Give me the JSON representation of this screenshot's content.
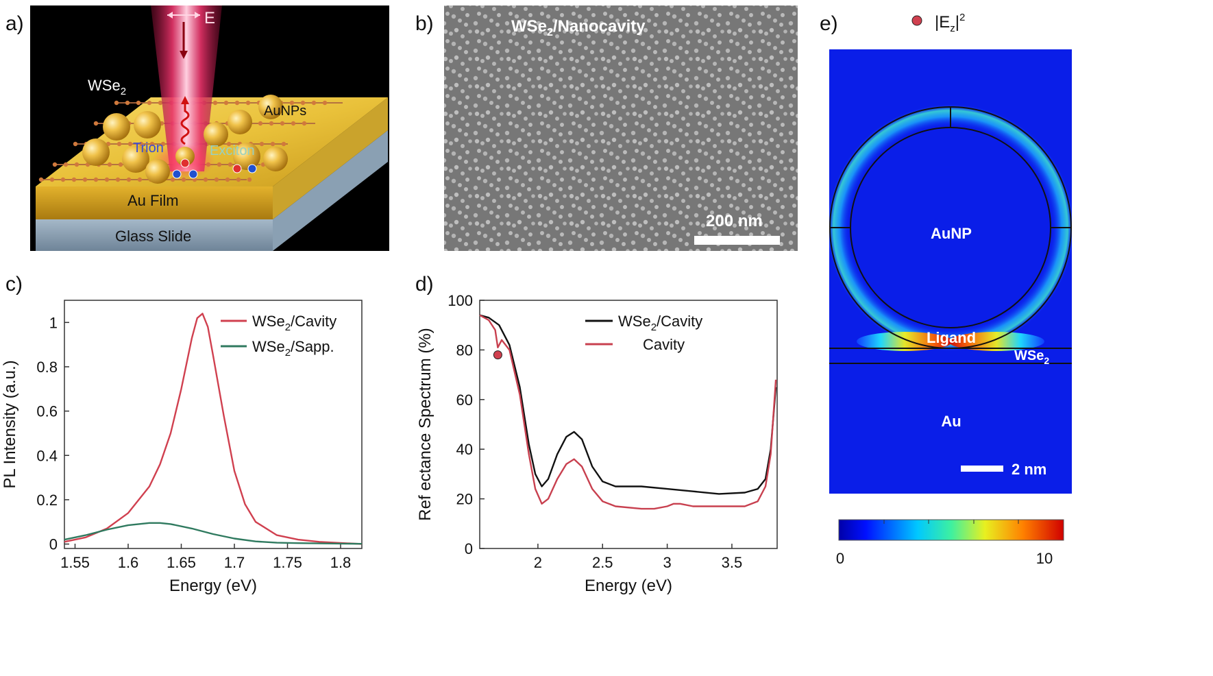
{
  "panels": {
    "a": {
      "letter": "a)",
      "field_label": "E",
      "labels": {
        "material": "WSe",
        "material_sub": "2",
        "particles": "AuNPs",
        "trion": "Trion",
        "exciton": "Exciton",
        "film": "Au Film",
        "substrate": "Glass Slide"
      }
    },
    "b": {
      "letter": "b)",
      "title": "WSe",
      "title_sub": "2",
      "title_rest": "/Nanocavity",
      "scale_bar": "200 nm"
    },
    "c": {
      "letter": "c)",
      "legend": [
        {
          "pre": "WSe",
          "sub": "2",
          "post": "/Cavity",
          "color": "#d0404f"
        },
        {
          "pre": "WSe",
          "sub": "2",
          "post": "/Sapp.",
          "color": "#2f7a5f"
        }
      ]
    },
    "d": {
      "letter": "d)",
      "legend": [
        {
          "pre": "WSe",
          "sub": "2",
          "post": "/Cavity",
          "color": "#111111"
        },
        {
          "pre": "",
          "sub": "",
          "post": "Cavity",
          "color": "#c8404f"
        }
      ]
    },
    "e": {
      "letter": "e)",
      "legend_pre": "|E",
      "legend_sub": "z",
      "legend_post": "|",
      "legend_sup": "2",
      "labels": {
        "particle": "AuNP",
        "ligand": "Ligand",
        "material": "WSe",
        "material_sub": "2",
        "metal": "Au"
      },
      "scale_bar": "2 nm",
      "colorbar_min": "0",
      "colorbar_max": "10"
    }
  },
  "chart_data": [
    {
      "type": "line",
      "panel": "c",
      "xlabel": "Energy (eV)",
      "ylabel": "PL Intensity (a.u.)",
      "xlim": [
        1.54,
        1.82
      ],
      "ylim": [
        -0.02,
        1.1
      ],
      "xticks": [
        "1.55",
        "1.6",
        "1.65",
        "1.7",
        "1.75",
        "1.8"
      ],
      "yticks": [
        "0",
        "0.2",
        "0.4",
        "0.6",
        "0.8",
        "1"
      ],
      "series": [
        {
          "name": "WSe2/Cavity",
          "color": "#d0404f",
          "x": [
            1.54,
            1.56,
            1.58,
            1.6,
            1.62,
            1.63,
            1.64,
            1.65,
            1.66,
            1.665,
            1.67,
            1.675,
            1.68,
            1.69,
            1.7,
            1.71,
            1.72,
            1.74,
            1.76,
            1.78,
            1.8,
            1.82
          ],
          "y": [
            0.01,
            0.03,
            0.07,
            0.14,
            0.26,
            0.36,
            0.5,
            0.7,
            0.93,
            1.02,
            1.04,
            0.98,
            0.85,
            0.58,
            0.33,
            0.18,
            0.1,
            0.04,
            0.02,
            0.01,
            0.005,
            0.0
          ]
        },
        {
          "name": "WSe2/Sapp.",
          "color": "#2f7a5f",
          "x": [
            1.54,
            1.56,
            1.58,
            1.6,
            1.62,
            1.63,
            1.64,
            1.66,
            1.68,
            1.7,
            1.72,
            1.74,
            1.76,
            1.78,
            1.8,
            1.82
          ],
          "y": [
            0.02,
            0.04,
            0.065,
            0.085,
            0.095,
            0.095,
            0.09,
            0.07,
            0.045,
            0.025,
            0.012,
            0.006,
            0.004,
            0.003,
            0.002,
            0.001
          ]
        }
      ]
    },
    {
      "type": "line",
      "panel": "d",
      "xlabel": "Energy (eV)",
      "ylabel": "Ref ectance Spectrum (%)",
      "xlim": [
        1.55,
        3.85
      ],
      "ylim": [
        0,
        100
      ],
      "xticks": [
        "2",
        "2.5",
        "3",
        "3.5"
      ],
      "yticks": [
        "0",
        "20",
        "40",
        "60",
        "80",
        "100"
      ],
      "marker": {
        "x": 1.69,
        "y": 78,
        "color": "#d0404f"
      },
      "series": [
        {
          "name": "WSe2/Cavity",
          "color": "#111111",
          "x": [
            1.55,
            1.62,
            1.7,
            1.78,
            1.86,
            1.93,
            1.98,
            2.03,
            2.08,
            2.15,
            2.22,
            2.28,
            2.34,
            2.42,
            2.5,
            2.6,
            2.8,
            3.0,
            3.2,
            3.4,
            3.6,
            3.7,
            3.76,
            3.8,
            3.84
          ],
          "y": [
            94,
            93,
            90,
            82,
            65,
            42,
            30,
            25,
            28,
            38,
            45,
            47,
            44,
            33,
            27,
            25,
            25,
            24,
            23,
            22,
            22.5,
            24,
            28,
            40,
            65
          ]
        },
        {
          "name": "Cavity",
          "color": "#c8404f",
          "x": [
            1.55,
            1.62,
            1.67,
            1.69,
            1.72,
            1.78,
            1.86,
            1.93,
            1.98,
            2.03,
            2.08,
            2.15,
            2.22,
            2.28,
            2.34,
            2.42,
            2.5,
            2.6,
            2.8,
            2.9,
            3.0,
            3.05,
            3.1,
            3.2,
            3.4,
            3.6,
            3.7,
            3.76,
            3.8,
            3.84
          ],
          "y": [
            94,
            92,
            88,
            81,
            84,
            80,
            62,
            38,
            24,
            18,
            20,
            28,
            34,
            36,
            33,
            24,
            19,
            17,
            16,
            16,
            17,
            18,
            18,
            17,
            17,
            17,
            19,
            25,
            38,
            68
          ]
        }
      ]
    }
  ]
}
